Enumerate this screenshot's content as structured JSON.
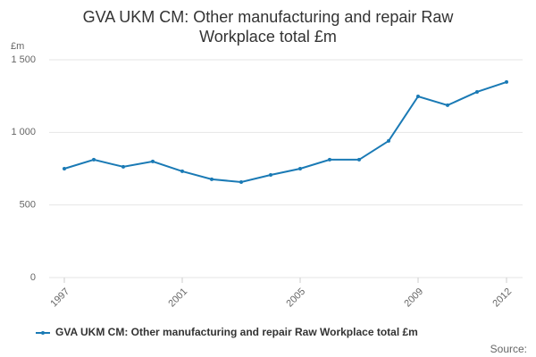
{
  "chart_data": {
    "type": "line",
    "title": "GVA UKM CM: Other manufacturing and repair Raw Workplace total £m",
    "y_unit": "£m",
    "source": "Source:",
    "x": [
      1997,
      1998,
      1999,
      2000,
      2001,
      2002,
      2003,
      2004,
      2005,
      2006,
      2007,
      2008,
      2009,
      2010,
      2011,
      2012
    ],
    "series": [
      {
        "name": "GVA UKM CM: Other manufacturing and repair Raw Workplace total £m",
        "color": "#1a7ab5",
        "values": [
          750,
          812,
          763,
          800,
          732,
          677,
          658,
          707,
          750,
          812,
          812,
          941,
          1248,
          1187,
          1279,
          1347
        ]
      }
    ],
    "xlim": [
      1997,
      2012
    ],
    "xticks": [
      1997,
      2001,
      2005,
      2009,
      2012
    ],
    "ylim": [
      0,
      1500
    ],
    "yticks": [
      0,
      500,
      {
        "value": 1000,
        "label": "1 000"
      },
      {
        "value": 1500,
        "label": "1 500"
      }
    ],
    "grid": true
  }
}
